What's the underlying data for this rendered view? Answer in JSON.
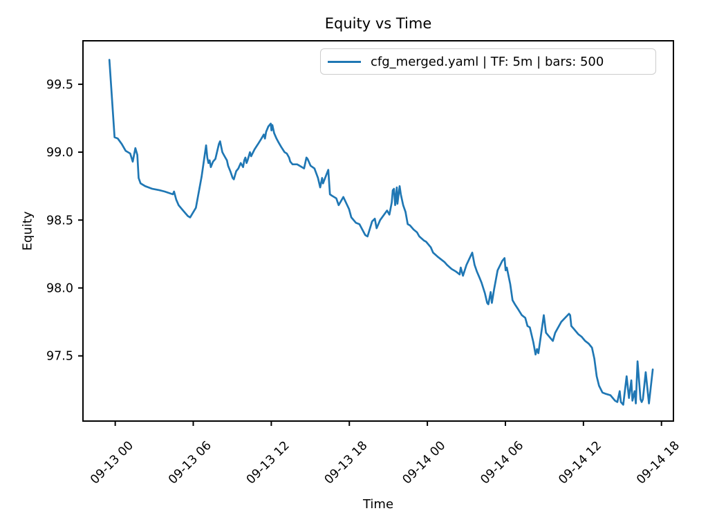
{
  "figure": {
    "background": "#ffffff"
  },
  "chart_data": {
    "type": "line",
    "title": "Equity vs Time",
    "xlabel": "Time",
    "ylabel": "Equity",
    "grid": false,
    "legend": {
      "position": "upper right",
      "entries": [
        {
          "label": "cfg_merged.yaml | TF: 5m | bars: 500",
          "color": "#1f77b4"
        }
      ]
    },
    "axes_color": "#000000",
    "x_axis": {
      "unit": "hours relative to 09-13 00:00",
      "lim": [
        -2.48,
        42.92
      ],
      "ticks": [
        {
          "value": 0,
          "label": "09-13 00"
        },
        {
          "value": 6,
          "label": "09-13 06"
        },
        {
          "value": 12,
          "label": "09-13 12"
        },
        {
          "value": 18,
          "label": "09-13 18"
        },
        {
          "value": 24,
          "label": "09-14 00"
        },
        {
          "value": 30,
          "label": "09-14 06"
        },
        {
          "value": 36,
          "label": "09-14 12"
        },
        {
          "value": 42,
          "label": "09-14 18"
        }
      ]
    },
    "y_axis": {
      "lim": [
        97.02,
        99.82
      ],
      "ticks": [
        {
          "value": 97.5,
          "label": "97.5"
        },
        {
          "value": 98.0,
          "label": "98.0"
        },
        {
          "value": 98.5,
          "label": "98.5"
        },
        {
          "value": 99.0,
          "label": "99.0"
        },
        {
          "value": 99.5,
          "label": "99.5"
        }
      ]
    },
    "series": [
      {
        "name": "cfg_merged.yaml | TF: 5m | bars: 500",
        "color": "#1f77b4",
        "line_width": 2.7,
        "points": [
          [
            -0.45,
            99.68
          ],
          [
            -0.05,
            99.11
          ],
          [
            0.2,
            99.1
          ],
          [
            0.5,
            99.06
          ],
          [
            0.8,
            99.01
          ],
          [
            1.15,
            98.99
          ],
          [
            1.35,
            98.93
          ],
          [
            1.55,
            99.03
          ],
          [
            1.7,
            98.98
          ],
          [
            1.8,
            98.81
          ],
          [
            1.95,
            98.77
          ],
          [
            2.3,
            98.75
          ],
          [
            2.85,
            98.73
          ],
          [
            3.4,
            98.72
          ],
          [
            3.8,
            98.71
          ],
          [
            4.43,
            98.69
          ],
          [
            4.52,
            98.71
          ],
          [
            4.69,
            98.65
          ],
          [
            4.87,
            98.61
          ],
          [
            5.22,
            98.57
          ],
          [
            5.58,
            98.53
          ],
          [
            5.76,
            98.52
          ],
          [
            6.2,
            98.59
          ],
          [
            6.64,
            98.82
          ],
          [
            6.99,
            99.05
          ],
          [
            7.08,
            98.96
          ],
          [
            7.17,
            98.92
          ],
          [
            7.26,
            98.94
          ],
          [
            7.35,
            98.89
          ],
          [
            7.52,
            98.93
          ],
          [
            7.7,
            98.95
          ],
          [
            7.97,
            99.06
          ],
          [
            8.06,
            99.08
          ],
          [
            8.24,
            99.0
          ],
          [
            8.41,
            98.97
          ],
          [
            8.59,
            98.94
          ],
          [
            8.68,
            98.9
          ],
          [
            8.85,
            98.86
          ],
          [
            9.03,
            98.81
          ],
          [
            9.12,
            98.8
          ],
          [
            9.3,
            98.86
          ],
          [
            9.47,
            98.88
          ],
          [
            9.65,
            98.92
          ],
          [
            9.83,
            98.89
          ],
          [
            9.92,
            98.94
          ],
          [
            10.01,
            98.96
          ],
          [
            10.1,
            98.92
          ],
          [
            10.18,
            98.94
          ],
          [
            10.36,
            99.0
          ],
          [
            10.45,
            98.97
          ],
          [
            10.71,
            99.02
          ],
          [
            10.98,
            99.06
          ],
          [
            11.24,
            99.1
          ],
          [
            11.42,
            99.13
          ],
          [
            11.51,
            99.1
          ],
          [
            11.6,
            99.15
          ],
          [
            11.78,
            99.19
          ],
          [
            11.96,
            99.21
          ],
          [
            12.01,
            99.16
          ],
          [
            12.08,
            99.2
          ],
          [
            12.22,
            99.14
          ],
          [
            12.4,
            99.1
          ],
          [
            12.57,
            99.07
          ],
          [
            12.75,
            99.04
          ],
          [
            13.02,
            99.0
          ],
          [
            13.19,
            98.99
          ],
          [
            13.37,
            98.96
          ],
          [
            13.46,
            98.93
          ],
          [
            13.64,
            98.91
          ],
          [
            13.99,
            98.91
          ],
          [
            14.35,
            98.89
          ],
          [
            14.52,
            98.88
          ],
          [
            14.7,
            98.96
          ],
          [
            14.79,
            98.95
          ],
          [
            15.02,
            98.9
          ],
          [
            15.32,
            98.88
          ],
          [
            15.59,
            98.81
          ],
          [
            15.76,
            98.74
          ],
          [
            15.91,
            98.81
          ],
          [
            15.98,
            98.77
          ],
          [
            16.38,
            98.87
          ],
          [
            16.51,
            98.69
          ],
          [
            16.65,
            98.68
          ],
          [
            17.0,
            98.66
          ],
          [
            17.18,
            98.61
          ],
          [
            17.54,
            98.67
          ],
          [
            17.98,
            98.58
          ],
          [
            18.15,
            98.52
          ],
          [
            18.51,
            98.48
          ],
          [
            18.78,
            98.47
          ],
          [
            19.22,
            98.39
          ],
          [
            19.4,
            98.38
          ],
          [
            19.75,
            98.49
          ],
          [
            19.96,
            98.51
          ],
          [
            20.1,
            98.44
          ],
          [
            20.37,
            98.5
          ],
          [
            20.9,
            98.57
          ],
          [
            21.08,
            98.54
          ],
          [
            21.26,
            98.63
          ],
          [
            21.34,
            98.72
          ],
          [
            21.43,
            98.73
          ],
          [
            21.52,
            98.61
          ],
          [
            21.65,
            98.74
          ],
          [
            21.7,
            98.62
          ],
          [
            21.87,
            98.75
          ],
          [
            21.96,
            98.69
          ],
          [
            22.14,
            98.61
          ],
          [
            22.32,
            98.56
          ],
          [
            22.49,
            98.47
          ],
          [
            22.67,
            98.46
          ],
          [
            22.94,
            98.43
          ],
          [
            23.2,
            98.41
          ],
          [
            23.38,
            98.38
          ],
          [
            23.73,
            98.35
          ],
          [
            23.91,
            98.34
          ],
          [
            24.26,
            98.3
          ],
          [
            24.44,
            98.26
          ],
          [
            24.79,
            98.23
          ],
          [
            25.33,
            98.19
          ],
          [
            25.51,
            98.17
          ],
          [
            25.86,
            98.14
          ],
          [
            26.21,
            98.12
          ],
          [
            26.48,
            98.1
          ],
          [
            26.57,
            98.15
          ],
          [
            26.74,
            98.09
          ],
          [
            27.01,
            98.17
          ],
          [
            27.45,
            98.26
          ],
          [
            27.63,
            98.17
          ],
          [
            27.81,
            98.12
          ],
          [
            27.99,
            98.08
          ],
          [
            28.16,
            98.04
          ],
          [
            28.43,
            97.96
          ],
          [
            28.6,
            97.89
          ],
          [
            28.69,
            97.88
          ],
          [
            28.87,
            97.97
          ],
          [
            28.96,
            97.89
          ],
          [
            29.13,
            97.99
          ],
          [
            29.4,
            98.13
          ],
          [
            29.76,
            98.2
          ],
          [
            29.93,
            98.22
          ],
          [
            30.02,
            98.13
          ],
          [
            30.11,
            98.15
          ],
          [
            30.37,
            98.03
          ],
          [
            30.55,
            97.91
          ],
          [
            30.73,
            97.88
          ],
          [
            31.0,
            97.84
          ],
          [
            31.26,
            97.8
          ],
          [
            31.53,
            97.78
          ],
          [
            31.7,
            97.72
          ],
          [
            31.88,
            97.71
          ],
          [
            32.15,
            97.6
          ],
          [
            32.32,
            97.51
          ],
          [
            32.43,
            97.55
          ],
          [
            32.54,
            97.52
          ],
          [
            32.95,
            97.8
          ],
          [
            33.12,
            97.67
          ],
          [
            33.3,
            97.65
          ],
          [
            33.65,
            97.61
          ],
          [
            33.83,
            97.67
          ],
          [
            34.29,
            97.75
          ],
          [
            34.89,
            97.81
          ],
          [
            34.98,
            97.8
          ],
          [
            35.07,
            97.72
          ],
          [
            35.25,
            97.7
          ],
          [
            35.6,
            97.66
          ],
          [
            35.87,
            97.64
          ],
          [
            36.13,
            97.61
          ],
          [
            36.4,
            97.59
          ],
          [
            36.66,
            97.56
          ],
          [
            36.84,
            97.48
          ],
          [
            37.02,
            97.35
          ],
          [
            37.2,
            97.28
          ],
          [
            37.46,
            97.23
          ],
          [
            37.73,
            97.22
          ],
          [
            38.08,
            97.21
          ],
          [
            38.43,
            97.17
          ],
          [
            38.61,
            97.16
          ],
          [
            38.79,
            97.24
          ],
          [
            38.88,
            97.16
          ],
          [
            39.06,
            97.14
          ],
          [
            39.32,
            97.35
          ],
          [
            39.5,
            97.19
          ],
          [
            39.68,
            97.32
          ],
          [
            39.77,
            97.17
          ],
          [
            39.94,
            97.24
          ],
          [
            40.03,
            97.15
          ],
          [
            40.16,
            97.46
          ],
          [
            40.39,
            97.18
          ],
          [
            40.48,
            97.16
          ],
          [
            40.57,
            97.18
          ],
          [
            40.79,
            97.38
          ],
          [
            41.04,
            97.15
          ],
          [
            41.33,
            97.4
          ]
        ]
      }
    ]
  }
}
